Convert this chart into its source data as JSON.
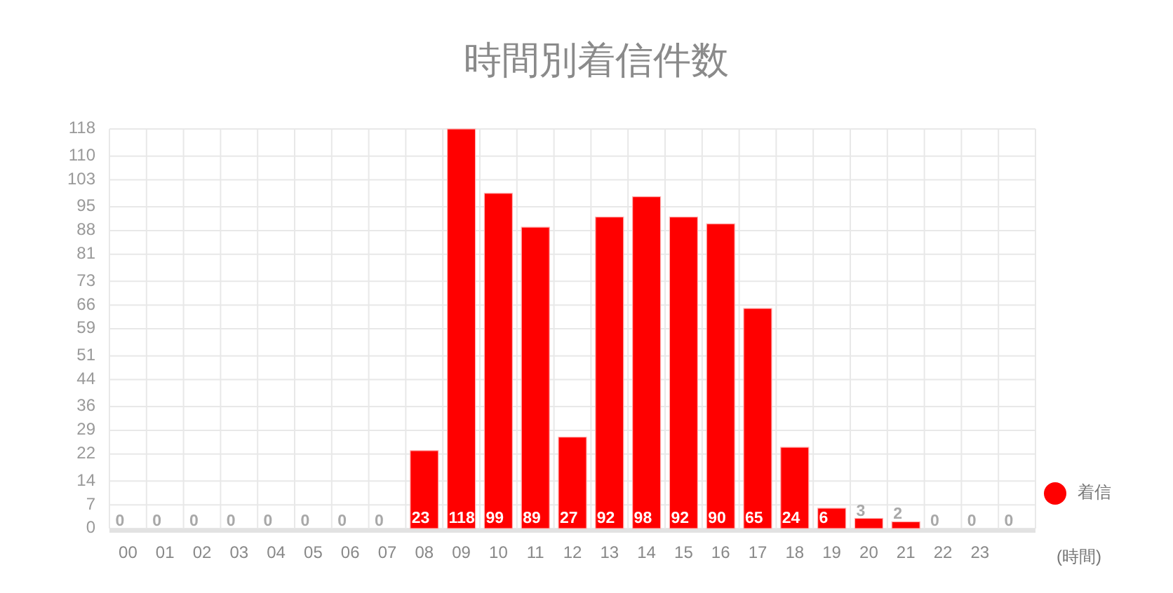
{
  "chart_data": {
    "type": "bar",
    "title": "時間別着信件数",
    "xlabel": "(時間)",
    "categories": [
      "00",
      "01",
      "02",
      "03",
      "04",
      "05",
      "06",
      "07",
      "08",
      "09",
      "10",
      "11",
      "12",
      "13",
      "14",
      "15",
      "16",
      "17",
      "18",
      "19",
      "20",
      "21",
      "22",
      "23",
      null
    ],
    "series": [
      {
        "name": "着信",
        "color": "#ff0000",
        "values": [
          0,
          0,
          0,
          0,
          0,
          0,
          0,
          0,
          23,
          118,
          99,
          89,
          27,
          92,
          98,
          92,
          90,
          65,
          24,
          6,
          3,
          2,
          0,
          0,
          0
        ]
      }
    ],
    "ylim": [
      0,
      118
    ],
    "yticks": [
      0,
      7,
      14,
      22,
      29,
      36,
      44,
      51,
      59,
      66,
      73,
      81,
      88,
      95,
      103,
      110,
      118
    ],
    "grid": true,
    "legend": "right",
    "data_labels": true
  }
}
